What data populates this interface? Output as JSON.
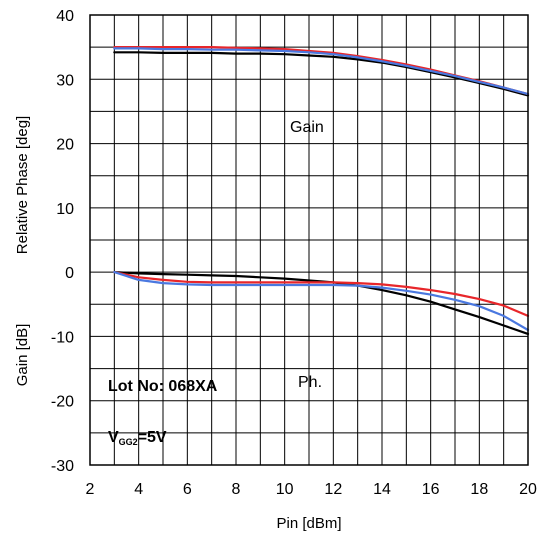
{
  "chart_data": {
    "type": "line",
    "title": "",
    "xlabel": "Pin [dBm]",
    "ylabel_upper": "Relative Phase [deg]",
    "ylabel_lower": "Gain [dB]",
    "xlim": [
      2,
      20
    ],
    "ylim": [
      -30,
      40
    ],
    "x_ticks": [
      "2",
      "4",
      "6",
      "8",
      "10",
      "12",
      "14",
      "16",
      "18",
      "20"
    ],
    "y_ticks": [
      "40",
      "30",
      "20",
      "10",
      "0",
      "-10",
      "-20",
      "-30"
    ],
    "grid": true,
    "annotations": {
      "gain": "Gain",
      "phase": "Ph.",
      "lot": "Lot No: 068XA",
      "vgg_main": "V",
      "vgg_sub": "GG2",
      "vgg_value": "=5V"
    },
    "series": [
      {
        "color": "#000000",
        "group": "gain",
        "x": [
          3,
          4,
          5,
          6,
          7,
          8,
          9,
          10,
          11,
          12,
          13,
          14,
          15,
          16,
          17,
          18,
          19,
          20
        ],
        "y": [
          34.2,
          34.2,
          34.1,
          34.1,
          34.1,
          34.0,
          34.0,
          33.9,
          33.7,
          33.5,
          33.1,
          32.6,
          31.9,
          31.1,
          30.3,
          29.4,
          28.5,
          27.5
        ]
      },
      {
        "color": "#e8262a",
        "group": "gain",
        "x": [
          3,
          4,
          5,
          6,
          7,
          8,
          9,
          10,
          11,
          12,
          13,
          14,
          15,
          16,
          17,
          18,
          19,
          20
        ],
        "y": [
          35.0,
          35.0,
          35.0,
          35.0,
          35.0,
          34.9,
          34.8,
          34.7,
          34.4,
          34.1,
          33.6,
          33.0,
          32.3,
          31.5,
          30.6,
          29.7,
          28.7,
          27.7
        ]
      },
      {
        "color": "#4a78e0",
        "group": "gain",
        "x": [
          3,
          4,
          5,
          6,
          7,
          8,
          9,
          10,
          11,
          12,
          13,
          14,
          15,
          16,
          17,
          18,
          19,
          20
        ],
        "y": [
          34.8,
          34.8,
          34.7,
          34.7,
          34.6,
          34.6,
          34.5,
          34.4,
          34.2,
          33.9,
          33.4,
          32.8,
          32.1,
          31.3,
          30.5,
          29.6,
          28.7,
          27.7
        ]
      },
      {
        "color": "#000000",
        "group": "phase",
        "x": [
          3,
          4,
          5,
          6,
          7,
          8,
          9,
          10,
          11,
          12,
          13,
          14,
          15,
          16,
          17,
          18,
          19,
          20
        ],
        "y": [
          0.0,
          -0.2,
          -0.3,
          -0.4,
          -0.5,
          -0.6,
          -0.8,
          -1.0,
          -1.3,
          -1.6,
          -2.1,
          -2.8,
          -3.6,
          -4.6,
          -5.8,
          -7.0,
          -8.3,
          -9.6
        ]
      },
      {
        "color": "#e8262a",
        "group": "phase",
        "x": [
          3,
          4,
          5,
          6,
          7,
          8,
          9,
          10,
          11,
          12,
          13,
          14,
          15,
          16,
          17,
          18,
          19,
          20
        ],
        "y": [
          0.0,
          -0.8,
          -1.2,
          -1.5,
          -1.6,
          -1.6,
          -1.6,
          -1.6,
          -1.6,
          -1.6,
          -1.7,
          -1.9,
          -2.3,
          -2.8,
          -3.4,
          -4.2,
          -5.2,
          -6.8
        ]
      },
      {
        "color": "#4a78e0",
        "group": "phase",
        "x": [
          3,
          4,
          5,
          6,
          7,
          8,
          9,
          10,
          11,
          12,
          13,
          14,
          15,
          16,
          17,
          18,
          19,
          20
        ],
        "y": [
          0.0,
          -1.2,
          -1.7,
          -1.9,
          -2.0,
          -2.0,
          -2.0,
          -2.0,
          -2.0,
          -2.0,
          -2.1,
          -2.4,
          -2.9,
          -3.5,
          -4.3,
          -5.3,
          -6.8,
          -9.0
        ]
      }
    ]
  }
}
